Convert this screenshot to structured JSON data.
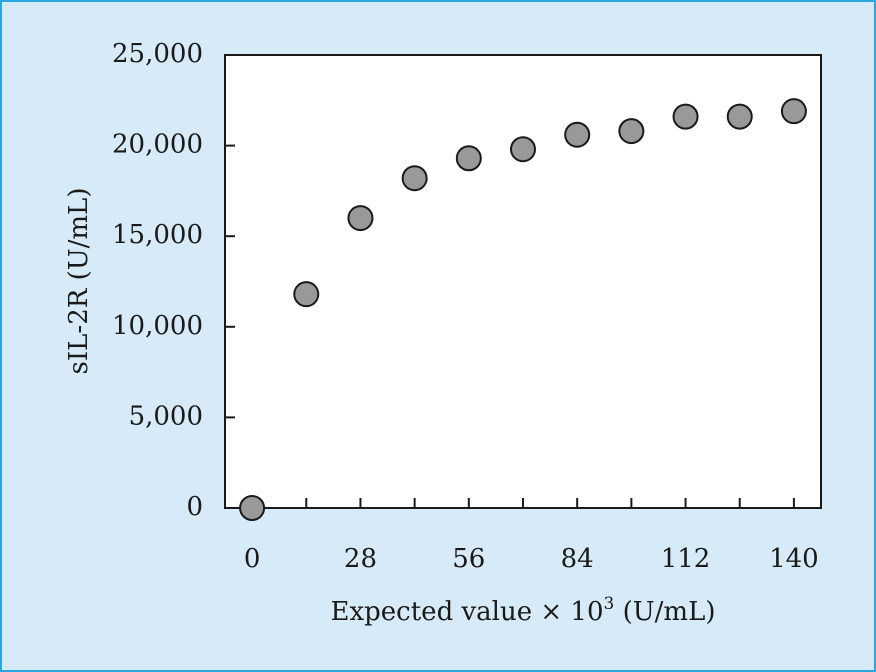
{
  "chart_data": {
    "type": "scatter",
    "xlabel": "Expected value × 10",
    "xlabel_superscript": "3",
    "xlabel_units": " (U/mL)",
    "ylabel": "sIL-2R (U/mL)",
    "xlim": [
      -7,
      147
    ],
    "ylim": [
      0,
      25000
    ],
    "x_ticks": [
      0,
      14,
      28,
      42,
      56,
      70,
      84,
      98,
      112,
      126,
      140
    ],
    "x_tick_labels": [
      "0",
      "",
      "28",
      "",
      "56",
      "",
      "84",
      "",
      "112",
      "",
      "140"
    ],
    "y_ticks": [
      0,
      5000,
      10000,
      15000,
      20000,
      25000
    ],
    "y_tick_labels": [
      "0",
      "5,000",
      "10,000",
      "15,000",
      "20,000",
      "25,000"
    ],
    "grid": false,
    "marker_color": "#999999",
    "marker_edge": "#1a1a1a",
    "series": [
      {
        "x": [
          0,
          14,
          28,
          42,
          56,
          70,
          84,
          98,
          112,
          126,
          140
        ],
        "values": [
          0,
          11800,
          16000,
          18200,
          19300,
          19800,
          20600,
          20800,
          21600,
          21600,
          21900
        ]
      }
    ]
  }
}
